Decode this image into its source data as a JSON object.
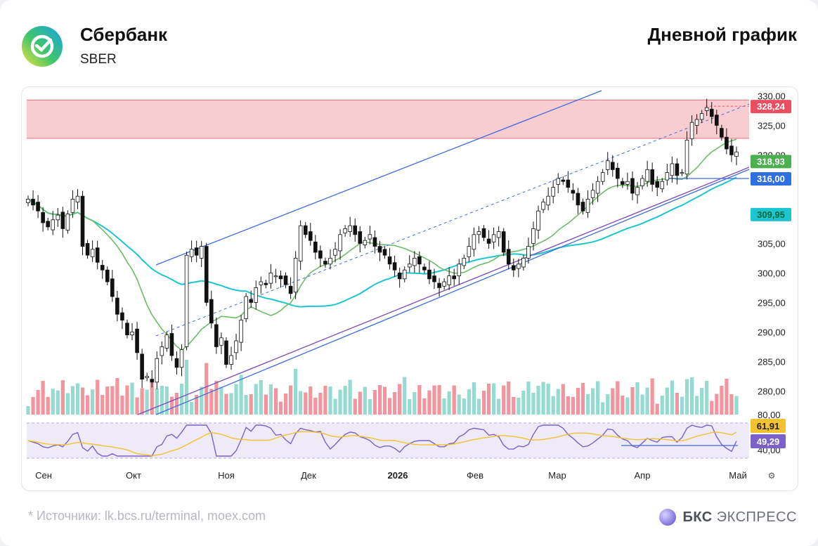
{
  "header": {
    "company": "Сбербанк",
    "ticker": "SBER",
    "chart_title": "Дневной график"
  },
  "footer": {
    "sources": "*  Источники: lk.bcs.ru/terminal, moex.com",
    "brand_bold": "БКС",
    "brand_rest": " ЭКСПРЕСС"
  },
  "colors": {
    "up": "#4ec3b2",
    "down": "#e94f5e",
    "candle_up": "#ffffff",
    "candle_down": "#111111",
    "ma_green": "#6ebd6a",
    "ma_teal": "#1cc6d0",
    "channel": "#3f6be0",
    "support": "#7c4ab8",
    "resistance_zone": "#f8cdd2",
    "rsi": "#7b61c9",
    "rsi_ma": "#f2c230"
  },
  "chart_data": {
    "type": "candlestick",
    "title": "Дневной график",
    "ylim": [
      276,
      331
    ],
    "y_ticks": [
      "330,00",
      "325,00",
      "320,00",
      "305,00",
      "300,00",
      "295,00",
      "290,00",
      "285,00",
      "280,00"
    ],
    "x_labels": [
      "Сен",
      "Окт",
      "Ноя",
      "Дек",
      "2026",
      "Фев",
      "Мар",
      "Апр",
      "Май"
    ],
    "price_labels": [
      {
        "text": "328,24",
        "color": "#e94f5e"
      },
      {
        "text": "318,93",
        "color": "#4caf50"
      },
      {
        "text": "316,00",
        "color": "#2f6fe0"
      },
      {
        "text": "309,95",
        "color": "#1cc6d0"
      }
    ],
    "resistance_zone": [
      322.8,
      329.3
    ],
    "levels": {
      "resistance_line": 328.24,
      "support_line": 316.0
    },
    "moving_averages": [
      {
        "name": "MA short",
        "last": 318.93
      },
      {
        "name": "MA long",
        "last": 309.95
      }
    ],
    "closes": [
      312.5,
      311.5,
      310.5,
      308.5,
      307.8,
      309.0,
      309.8,
      307.5,
      310.0,
      312.5,
      313.0,
      304.5,
      303.0,
      304.0,
      301.8,
      300.5,
      298.5,
      296.0,
      293.0,
      292.0,
      289.5,
      290.0,
      286.5,
      282.0,
      282.5,
      281.5,
      285.5,
      287.5,
      289.5,
      286.0,
      284.0,
      287.0,
      303.0,
      304.0,
      303.0,
      304.5,
      295.0,
      291.5,
      287.5,
      289.0,
      284.5,
      286.0,
      288.5,
      292.0,
      296.0,
      295.0,
      297.5,
      298.5,
      298.0,
      300.0,
      299.5,
      299.0,
      298.0,
      296.5,
      302.5,
      308.0,
      306.5,
      305.5,
      303.5,
      302.5,
      301.5,
      302.5,
      304.0,
      306.5,
      307.5,
      308.0,
      306.5,
      305.0,
      305.5,
      306.5,
      304.5,
      303.5,
      303.0,
      301.5,
      300.5,
      299.0,
      300.5,
      301.5,
      302.5,
      301.5,
      300.5,
      299.0,
      298.5,
      297.5,
      298.5,
      299.5,
      299.0,
      301.5,
      302.5,
      304.5,
      306.5,
      307.0,
      306.0,
      305.0,
      306.5,
      307.0,
      303.5,
      301.5,
      300.5,
      301.5,
      302.5,
      304.5,
      307.5,
      310.5,
      312.0,
      313.0,
      314.5,
      316.0,
      315.5,
      314.5,
      313.5,
      311.5,
      310.5,
      312.5,
      314.0,
      315.5,
      317.0,
      319.0,
      317.5,
      316.0,
      315.0,
      315.5,
      313.5,
      314.5,
      316.0,
      317.5,
      315.0,
      314.5,
      315.5,
      317.0,
      318.5,
      316.5,
      317.0,
      322.5,
      325.5,
      326.0,
      327.0,
      328.0,
      326.5,
      325.0,
      323.0,
      321.0,
      320.0,
      320.5
    ],
    "rsi": {
      "ylim": [
        25,
        75
      ],
      "ticks": [
        "80,00",
        "40,00"
      ],
      "labels": [
        {
          "text": "61,91",
          "color": "#f2c230"
        },
        {
          "text": "49,29",
          "color": "#7b61c9"
        }
      ],
      "last_rsi": 49.29,
      "last_ma": 61.91
    }
  }
}
